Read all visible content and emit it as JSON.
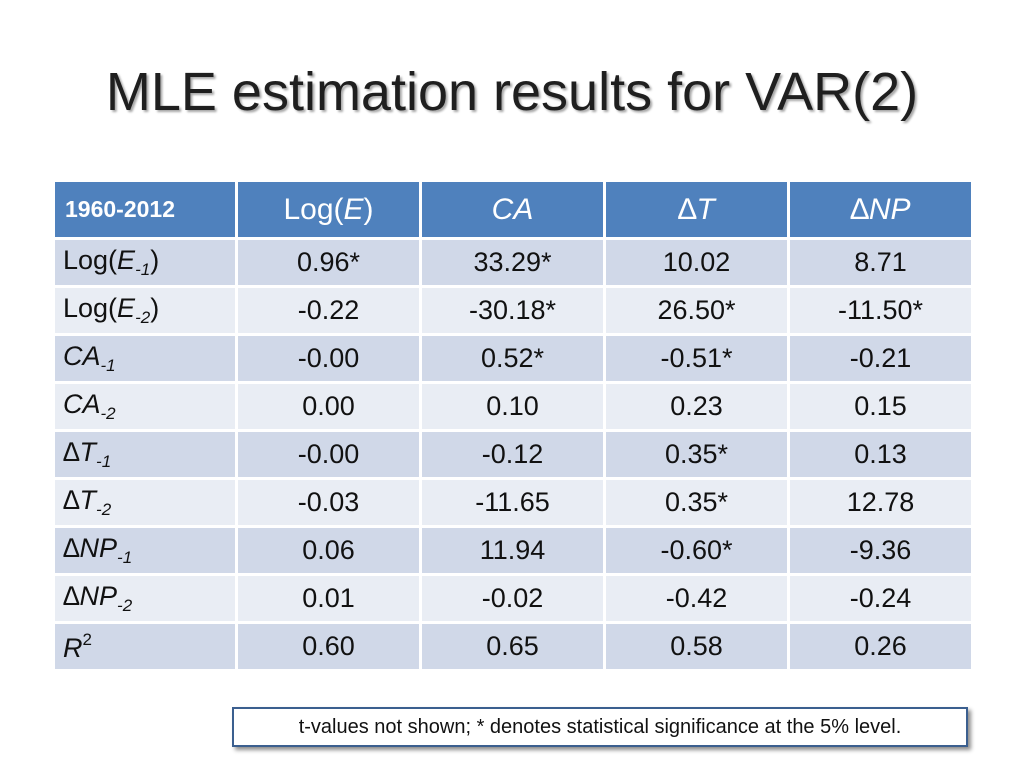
{
  "title": "MLE estimation results for VAR(2)",
  "table": {
    "corner": "1960-2012",
    "columns": [
      {
        "pre": "Log(",
        "var": "E",
        "post": ")"
      },
      {
        "pre": "",
        "var": "CA",
        "post": ""
      },
      {
        "pre": "∆",
        "var": "T",
        "post": ""
      },
      {
        "pre": "∆",
        "var": "NP",
        "post": ""
      }
    ],
    "rows": [
      {
        "pre": "Log(",
        "var": "E",
        "sub": "-1",
        "post": ")",
        "values": [
          "0.96*",
          "33.29*",
          "10.02",
          "8.71"
        ]
      },
      {
        "pre": "Log(",
        "var": "E",
        "sub": "-2",
        "post": ")",
        "values": [
          "-0.22",
          "-30.18*",
          "26.50*",
          "-11.50*"
        ]
      },
      {
        "pre": "",
        "var": "CA",
        "sub": "-1",
        "post": "",
        "values": [
          "-0.00",
          "0.52*",
          "-0.51*",
          "-0.21"
        ]
      },
      {
        "pre": "",
        "var": "CA",
        "sub": "-2",
        "post": "",
        "values": [
          "0.00",
          "0.10",
          "0.23",
          "0.15"
        ]
      },
      {
        "pre": "∆",
        "var": "T",
        "sub": "-1",
        "post": "",
        "values": [
          "-0.00",
          "-0.12",
          "0.35*",
          "0.13"
        ]
      },
      {
        "pre": "∆",
        "var": "T",
        "sub": "-2",
        "post": "",
        "values": [
          "-0.03",
          "-11.65",
          "0.35*",
          "12.78"
        ]
      },
      {
        "pre": "∆",
        "var": "NP",
        "sub": "-1",
        "post": "",
        "values": [
          "0.06",
          "11.94",
          "-0.60*",
          "-9.36"
        ]
      },
      {
        "pre": "∆",
        "var": "NP",
        "sub": "-2",
        "post": "",
        "values": [
          "0.01",
          "-0.02",
          "-0.42",
          "-0.24"
        ]
      },
      {
        "pre": "",
        "var": "R",
        "sup": "2",
        "post": "",
        "values": [
          "0.60",
          "0.65",
          "0.58",
          "0.26"
        ]
      }
    ]
  },
  "note": "t-values not shown; * denotes statistical significance at the 5% level.",
  "colors": {
    "header": "#4f81bd",
    "row_dark": "#d0d8e8",
    "row_light": "#e9edf4"
  }
}
